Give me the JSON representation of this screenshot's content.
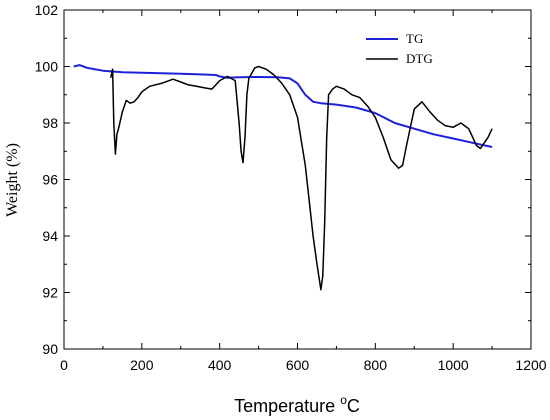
{
  "chart_data": {
    "type": "line",
    "xlabel": "Temperature",
    "xlabel_unit_sup": "o",
    "xlabel_unit": "C",
    "ylabel": "Weight (%)",
    "xlim": [
      0,
      1200
    ],
    "ylim": [
      90,
      102
    ],
    "x_ticks": [
      0,
      200,
      400,
      600,
      800,
      1000,
      1200
    ],
    "y_ticks": [
      90,
      92,
      94,
      96,
      98,
      100,
      102
    ],
    "grid": false,
    "legend_position": "top-right",
    "series": [
      {
        "name": "TG",
        "color": "#1f1fdc",
        "x": [
          25,
          40,
          60,
          100,
          150,
          200,
          250,
          300,
          350,
          390,
          400,
          420,
          450,
          500,
          550,
          580,
          600,
          620,
          640,
          660,
          700,
          750,
          800,
          850,
          900,
          950,
          1000,
          1050,
          1100
        ],
        "y": [
          100.0,
          100.05,
          99.95,
          99.85,
          99.8,
          99.78,
          99.76,
          99.74,
          99.72,
          99.7,
          99.65,
          99.6,
          99.62,
          99.63,
          99.62,
          99.58,
          99.4,
          99.0,
          98.75,
          98.7,
          98.65,
          98.55,
          98.35,
          98.0,
          97.8,
          97.6,
          97.45,
          97.3,
          97.15
        ]
      },
      {
        "name": "DTG",
        "color": "#000000",
        "x": [
          120,
          125,
          128,
          132,
          136,
          140,
          150,
          160,
          170,
          180,
          190,
          200,
          220,
          250,
          280,
          300,
          320,
          340,
          360,
          380,
          400,
          420,
          440,
          450,
          455,
          460,
          465,
          470,
          475,
          480,
          490,
          500,
          520,
          540,
          560,
          580,
          600,
          620,
          640,
          650,
          660,
          665,
          670,
          675,
          680,
          690,
          700,
          720,
          740,
          760,
          780,
          800,
          820,
          840,
          860,
          870,
          880,
          900,
          920,
          940,
          960,
          980,
          1000,
          1020,
          1040,
          1060,
          1070,
          1080,
          1090,
          1100
        ],
        "y": [
          99.6,
          99.9,
          98.0,
          96.9,
          97.6,
          97.8,
          98.4,
          98.8,
          98.7,
          98.75,
          98.9,
          99.1,
          99.3,
          99.4,
          99.55,
          99.45,
          99.35,
          99.3,
          99.25,
          99.2,
          99.5,
          99.65,
          99.5,
          98.0,
          97.0,
          96.6,
          97.5,
          99.0,
          99.6,
          99.7,
          99.95,
          100.0,
          99.9,
          99.7,
          99.4,
          99.0,
          98.2,
          96.5,
          94.0,
          93.0,
          92.1,
          92.6,
          94.5,
          97.5,
          99.0,
          99.2,
          99.3,
          99.2,
          99.0,
          98.9,
          98.6,
          98.2,
          97.5,
          96.7,
          96.4,
          96.5,
          97.2,
          98.5,
          98.75,
          98.4,
          98.1,
          97.9,
          97.85,
          98.0,
          97.8,
          97.2,
          97.1,
          97.3,
          97.5,
          97.8
        ]
      }
    ]
  }
}
